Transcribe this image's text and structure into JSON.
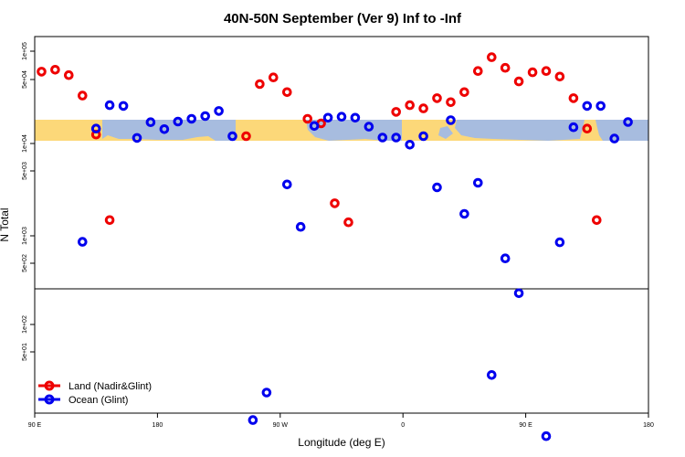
{
  "chart_data": {
    "type": "scatter",
    "title": "40N-50N September (Ver 9)   Inf to -Inf",
    "xlabel": "Longitude (deg E)",
    "ylabel": "N Total",
    "x_ticks": [
      {
        "value": 0,
        "label": "90 E"
      },
      {
        "value": 90,
        "label": "180"
      },
      {
        "value": 180,
        "label": "90 W"
      },
      {
        "value": 270,
        "label": "0"
      },
      {
        "value": 360,
        "label": "90 E"
      },
      {
        "value": 450,
        "label": "180"
      }
    ],
    "xlim": [
      0,
      450
    ],
    "y_ticks_upper": [
      "1e+05",
      "5e+04",
      "1e+04",
      "5e+03",
      "1e+03",
      "5e+02"
    ],
    "y_ticks_lower": [
      "1e+02",
      "5e+01"
    ],
    "map_band": {
      "land_color": "#a7bcdf",
      "ocean_color": "#fcd879"
    },
    "legend": {
      "position": "bottom-left"
    },
    "series": [
      {
        "name": "Land (Nadir&Glint)",
        "color": "#ee0000",
        "points": [
          [
            5,
            60000
          ],
          [
            15,
            63000
          ],
          [
            25,
            55000
          ],
          [
            35,
            33000
          ],
          [
            45,
            12500
          ],
          [
            55,
            1480
          ],
          [
            155,
            12000
          ],
          [
            165,
            44000
          ],
          [
            175,
            52000
          ],
          [
            185,
            36000
          ],
          [
            200,
            18500
          ],
          [
            210,
            16500
          ],
          [
            220,
            2250
          ],
          [
            230,
            1400
          ],
          [
            265,
            22000
          ],
          [
            275,
            26000
          ],
          [
            285,
            24000
          ],
          [
            295,
            31000
          ],
          [
            305,
            28000
          ],
          [
            315,
            36000
          ],
          [
            325,
            61000
          ],
          [
            335,
            86000
          ],
          [
            345,
            66000
          ],
          [
            355,
            47000
          ],
          [
            365,
            59000
          ],
          [
            375,
            61000
          ],
          [
            385,
            53000
          ],
          [
            395,
            31000
          ],
          [
            405,
            14500
          ],
          [
            412,
            1480
          ]
        ]
      },
      {
        "name": "Ocean (Glint)",
        "color": "#0000ee",
        "points": [
          [
            35,
            860
          ],
          [
            45,
            14500
          ],
          [
            55,
            26000
          ],
          [
            65,
            25500
          ],
          [
            75,
            11500
          ],
          [
            85,
            17000
          ],
          [
            95,
            14300
          ],
          [
            105,
            17300
          ],
          [
            115,
            18500
          ],
          [
            125,
            19800
          ],
          [
            135,
            22500
          ],
          [
            145,
            12000
          ],
          [
            160,
            9
          ],
          [
            170,
            18
          ],
          [
            185,
            3600
          ],
          [
            195,
            1250
          ],
          [
            205,
            15500
          ],
          [
            215,
            19000
          ],
          [
            225,
            19500
          ],
          [
            235,
            19000
          ],
          [
            245,
            15200
          ],
          [
            255,
            11600
          ],
          [
            265,
            11600
          ],
          [
            275,
            9700
          ],
          [
            285,
            12000
          ],
          [
            295,
            3350
          ],
          [
            305,
            17900
          ],
          [
            315,
            1730
          ],
          [
            325,
            3750
          ],
          [
            335,
            28
          ],
          [
            345,
            570
          ],
          [
            355,
            220
          ],
          [
            375,
            6
          ],
          [
            385,
            850
          ],
          [
            395,
            15000
          ],
          [
            405,
            25500
          ],
          [
            415,
            25500
          ],
          [
            425,
            11300
          ],
          [
            435,
            17100
          ]
        ]
      }
    ]
  }
}
